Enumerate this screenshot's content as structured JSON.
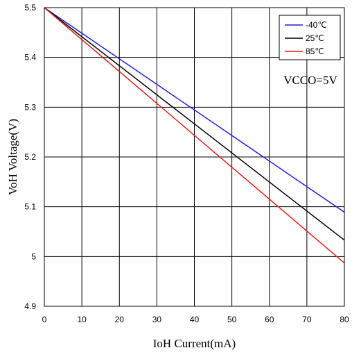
{
  "chart_data": {
    "type": "line",
    "xlabel": "IoH Current(mA)",
    "ylabel": "VoH Voltage(V)",
    "xlim": [
      0,
      80
    ],
    "ylim": [
      4.9,
      5.5
    ],
    "x_ticks": [
      0,
      10,
      20,
      30,
      40,
      50,
      60,
      70,
      80
    ],
    "y_ticks": [
      4.9,
      5,
      5.1,
      5.2,
      5.3,
      5.4,
      5.5
    ],
    "x_tick_labels": [
      "0",
      "10",
      "20",
      "30",
      "40",
      "50",
      "60",
      "70",
      "80"
    ],
    "y_tick_labels": [
      "4.9",
      "5",
      "5.1",
      "5.2",
      "5.3",
      "5.4",
      "5.5"
    ],
    "grid": true,
    "legend_position": "top-right",
    "annotation": "VCCO=5V",
    "series": [
      {
        "name": "-40℃",
        "color": "#1f1fd8",
        "x": [
          0,
          80
        ],
        "y": [
          5.5,
          5.089
        ]
      },
      {
        "name": "25℃",
        "color": "#000000",
        "x": [
          0,
          80
        ],
        "y": [
          5.5,
          5.033
        ]
      },
      {
        "name": "85℃",
        "color": "#e01b1b",
        "x": [
          0,
          80
        ],
        "y": [
          5.5,
          4.987
        ]
      }
    ]
  }
}
